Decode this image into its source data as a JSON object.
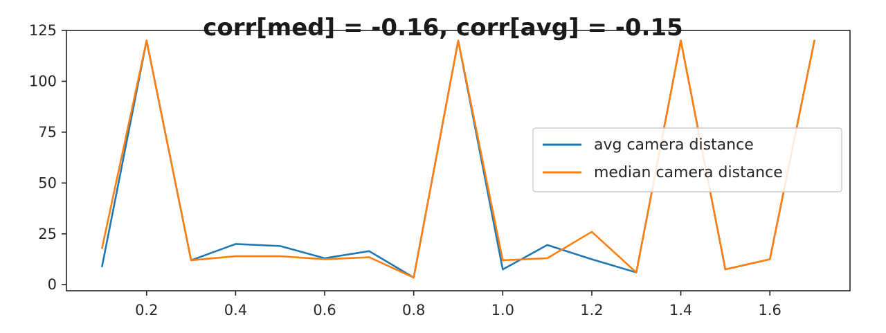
{
  "chart_data": {
    "type": "line",
    "title": "corr[med] = -0.16, corr[avg] = -0.15",
    "x": [
      0.1,
      0.2,
      0.3,
      0.4,
      0.5,
      0.6,
      0.7,
      0.8,
      0.9,
      1.0,
      1.1,
      1.2,
      1.3,
      1.4,
      1.5,
      1.6,
      1.7
    ],
    "series": [
      {
        "name": "avg camera distance",
        "color": "#1f77b4",
        "values": [
          9,
          120,
          12,
          20,
          19,
          13,
          16.5,
          3.5,
          120,
          7.5,
          19.5,
          12.5,
          6,
          120,
          7.5,
          12.5,
          120
        ]
      },
      {
        "name": "median camera distance",
        "color": "#ff7f0e",
        "values": [
          18,
          120,
          12,
          14,
          14,
          12.5,
          13.5,
          3.5,
          120,
          12,
          13,
          26,
          6,
          120,
          7.5,
          12.5,
          120
        ]
      }
    ],
    "xlim": [
      0.02,
      1.78
    ],
    "ylim": [
      -3,
      125
    ],
    "xticks": [
      0.2,
      0.4,
      0.6,
      0.8,
      1.0,
      1.2,
      1.4,
      1.6
    ],
    "xtick_labels": [
      "0.2",
      "0.4",
      "0.6",
      "0.8",
      "1.0",
      "1.2",
      "1.4",
      "1.6"
    ],
    "yticks": [
      0,
      25,
      50,
      75,
      100,
      125
    ],
    "ytick_labels": [
      "0",
      "25",
      "50",
      "75",
      "100",
      "125"
    ],
    "grid": false,
    "legend_position": "center-right",
    "xlabel": "",
    "ylabel": ""
  }
}
